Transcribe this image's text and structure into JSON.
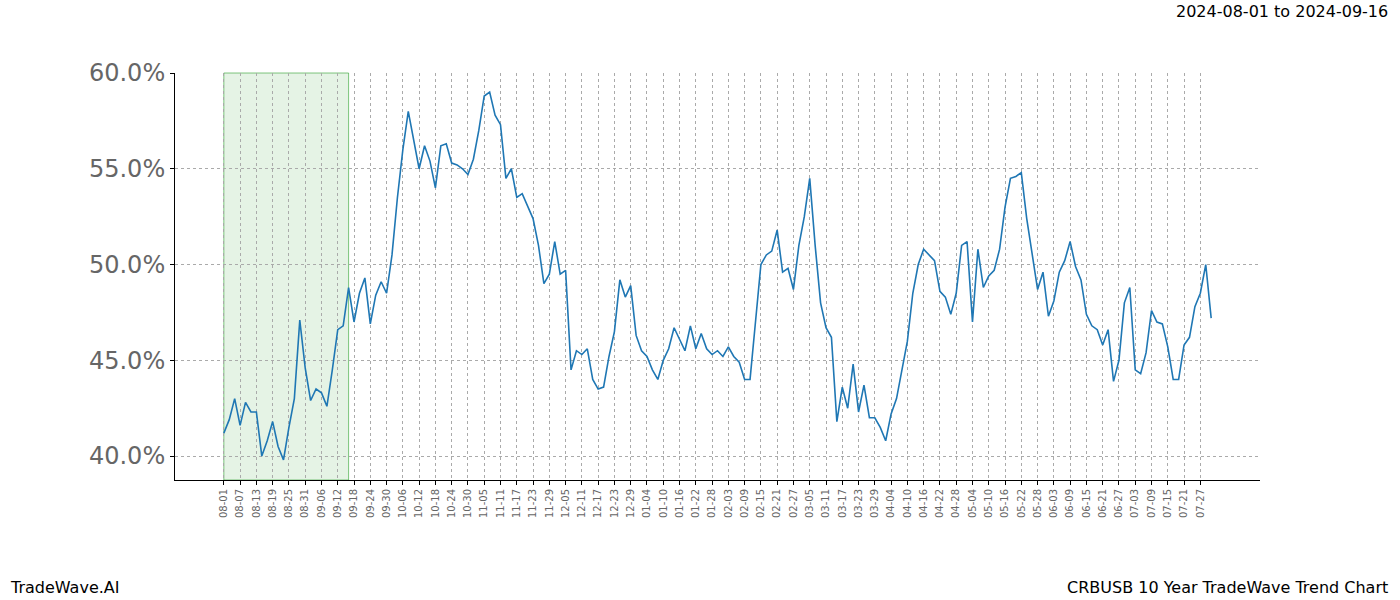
{
  "chart_data": {
    "type": "line",
    "title": "CRBUSB 10 Year TradeWave Trend Chart",
    "subtitle": "2024-08-01 to 2024-09-16",
    "annotations": [
      "TradeWave.AI"
    ],
    "categories": [
      "08-01",
      null,
      null,
      "08-07",
      null,
      null,
      "08-13",
      null,
      null,
      "08-19",
      null,
      null,
      "08-25",
      null,
      null,
      "08-31",
      null,
      null,
      "09-06",
      null,
      null,
      "09-12",
      null,
      null,
      "09-18",
      null,
      null,
      "09-24",
      null,
      null,
      "09-30",
      null,
      null,
      "10-06",
      null,
      null,
      "10-12",
      null,
      null,
      "10-18",
      null,
      null,
      "10-24",
      null,
      null,
      "10-30",
      null,
      null,
      "11-05",
      null,
      null,
      "11-11",
      null,
      null,
      "11-17",
      null,
      null,
      "11-23",
      null,
      null,
      "11-29",
      null,
      null,
      "12-05",
      null,
      null,
      "12-11",
      null,
      null,
      "12-17",
      null,
      null,
      "12-23",
      null,
      null,
      "12-29",
      null,
      null,
      "01-04",
      null,
      null,
      "01-10",
      null,
      null,
      "01-16",
      null,
      null,
      "01-22",
      null,
      null,
      "01-28",
      null,
      null,
      "02-03",
      null,
      null,
      "02-09",
      null,
      null,
      "02-15",
      null,
      null,
      "02-21",
      null,
      null,
      "02-27",
      null,
      null,
      "03-05",
      null,
      null,
      "03-11",
      null,
      null,
      "03-17",
      null,
      null,
      "03-23",
      null,
      null,
      "03-29",
      null,
      null,
      "04-04",
      null,
      null,
      "04-10",
      null,
      null,
      "04-16",
      null,
      null,
      "04-22",
      null,
      null,
      "04-28",
      null,
      null,
      "05-04",
      null,
      null,
      "05-10",
      null,
      null,
      "05-16",
      null,
      null,
      "05-22",
      null,
      null,
      "05-28",
      null,
      null,
      "06-03",
      null,
      null,
      "06-09",
      null,
      null,
      "06-15",
      null,
      null,
      "06-21",
      null,
      null,
      "06-27",
      null,
      null,
      "07-03",
      null,
      null,
      "07-09",
      null,
      null,
      "07-15",
      null,
      null,
      "07-21",
      null,
      null,
      "07-27",
      null,
      null
    ],
    "series": [
      {
        "name": "CRBUSB",
        "color": "#1f77b4",
        "values": [
          41.2,
          41.9,
          43.0,
          41.6,
          42.8,
          42.3,
          42.3,
          40.0,
          40.8,
          41.8,
          40.5,
          39.8,
          41.5,
          43.0,
          47.1,
          44.6,
          42.9,
          43.5,
          43.3,
          42.6,
          44.5,
          46.6,
          46.8,
          48.8,
          47.0,
          48.5,
          49.3,
          46.9,
          48.4,
          49.1,
          48.5,
          50.5,
          53.5,
          56.0,
          58.0,
          56.5,
          55.0,
          56.2,
          55.4,
          54.0,
          56.2,
          56.3,
          55.3,
          55.2,
          55.0,
          54.7,
          55.5,
          57.0,
          58.8,
          59.0,
          57.8,
          57.3,
          54.5,
          55.0,
          53.5,
          53.7,
          53.0,
          52.4,
          51.0,
          49.0,
          49.5,
          51.2,
          49.5,
          49.7,
          44.5,
          45.5,
          45.3,
          45.6,
          44.0,
          43.5,
          43.6,
          45.2,
          46.5,
          49.2,
          48.3,
          48.9,
          46.3,
          45.5,
          45.2,
          44.5,
          44.0,
          45.0,
          45.6,
          46.7,
          46.1,
          45.5,
          46.8,
          45.6,
          46.4,
          45.6,
          45.3,
          45.5,
          45.2,
          45.7,
          45.2,
          44.9,
          44.0,
          44.0,
          47.0,
          50.0,
          50.5,
          50.7,
          51.8,
          49.6,
          49.8,
          48.7,
          51.0,
          52.5,
          54.5,
          51.0,
          48.0,
          46.7,
          46.2,
          41.8,
          43.6,
          42.5,
          44.8,
          42.3,
          43.7,
          42.0,
          42.0,
          41.5,
          40.8,
          42.2,
          43.0,
          44.5,
          46.0,
          48.5,
          50.0,
          50.8,
          50.5,
          50.2,
          48.6,
          48.3,
          47.4,
          48.5,
          51.0,
          51.2,
          47.0,
          50.8,
          48.8,
          49.4,
          49.7,
          50.8,
          53.0,
          54.5,
          54.6,
          54.8,
          52.4,
          50.6,
          48.7,
          49.6,
          47.3,
          48.1,
          49.6,
          50.2,
          51.2,
          49.9,
          49.2,
          47.4,
          46.8,
          46.6,
          45.8,
          46.6,
          43.9,
          45.0,
          48.0,
          48.8,
          44.5,
          44.3,
          45.4,
          47.6,
          47.0,
          46.9,
          45.7,
          44.0,
          44.0,
          45.8,
          46.2,
          47.8,
          48.5,
          50.0,
          47.2
        ]
      }
    ],
    "highlight": {
      "start": 0,
      "end": 23
    },
    "xlim": [
      -9,
      191
    ],
    "ylim": [
      38.75,
      60.0
    ],
    "yticks": [
      {
        "value": 40,
        "label": "40.0%"
      },
      {
        "value": 45,
        "label": "45.0%"
      },
      {
        "value": 50,
        "label": "50.0%"
      },
      {
        "value": 55,
        "label": "55.0%"
      },
      {
        "value": 60,
        "label": "60.0%"
      }
    ],
    "grid": true
  }
}
